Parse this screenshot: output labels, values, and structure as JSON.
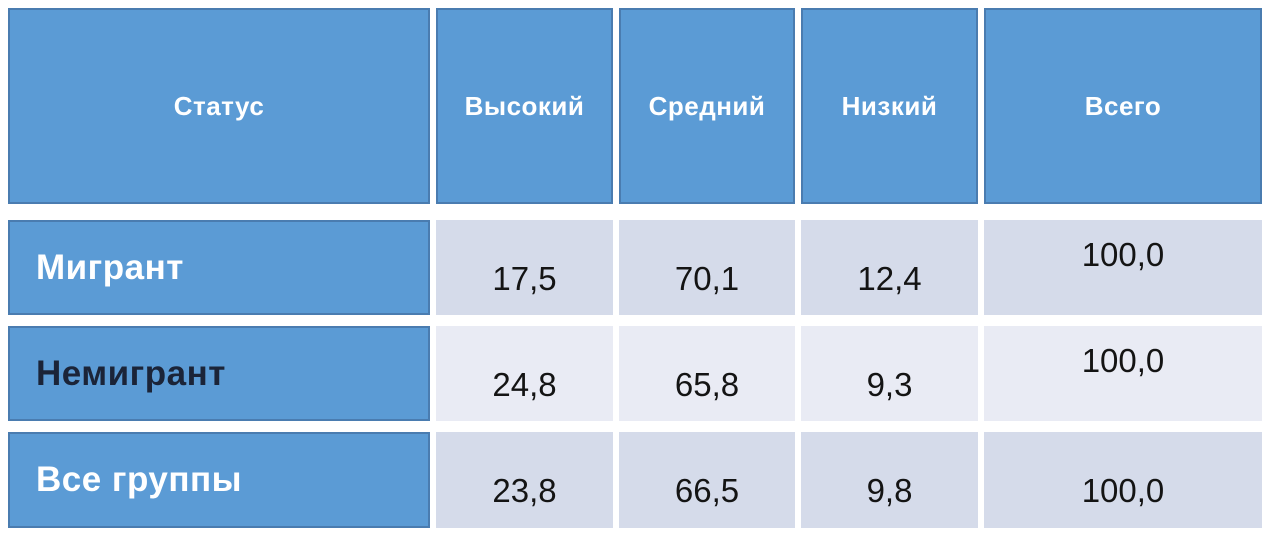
{
  "chart_data": {
    "type": "table",
    "columns": [
      "Статус",
      "Высокий",
      "Средний",
      "Низкий",
      "Всего"
    ],
    "rows": [
      {
        "label": "Мигрант",
        "values": [
          17.5,
          70.1,
          12.4,
          100.0
        ]
      },
      {
        "label": "Немигрант",
        "values": [
          24.8,
          65.8,
          9.3,
          100.0
        ]
      },
      {
        "label": "Все группы",
        "values": [
          23.8,
          66.5,
          9.8,
          100.0
        ]
      }
    ],
    "number_format": "decimal comma, one decimal place",
    "layout_hints": {
      "header_bg": "#5b9bd5",
      "row_label_bg": "#5b9bd5",
      "band_dark": "#d5dbea",
      "band_light": "#e9ebf4",
      "cell_border": "#4a7cb0",
      "header_text_color": "#ffffff",
      "row2_label_text_color": "#1b2438",
      "grid": "white gaps between cells"
    }
  },
  "table": {
    "header": {
      "status": "Статус",
      "high": "Высокий",
      "middle": "Средний",
      "low": "Низкий",
      "total": "Всего"
    },
    "rows": [
      {
        "label": "Мигрант",
        "high": "17,5",
        "middle": "70,1",
        "low": "12,4",
        "total": "100,0"
      },
      {
        "label": "Немигрант",
        "high": "24,8",
        "middle": "65,8",
        "low": "9,3",
        "total": "100,0"
      },
      {
        "label": "Все группы",
        "high": "23,8",
        "middle": "66,5",
        "low": "9,8",
        "total": "100,0"
      }
    ]
  },
  "colors": {
    "accent_blue": "#5b9bd5",
    "blue_cell_border": "#4a7cb0",
    "band_dark": "#d5dbea",
    "band_light": "#e9ebf4",
    "number_text": "#141414",
    "white_text": "#ffffff",
    "dark_label_text": "#1b2438"
  }
}
